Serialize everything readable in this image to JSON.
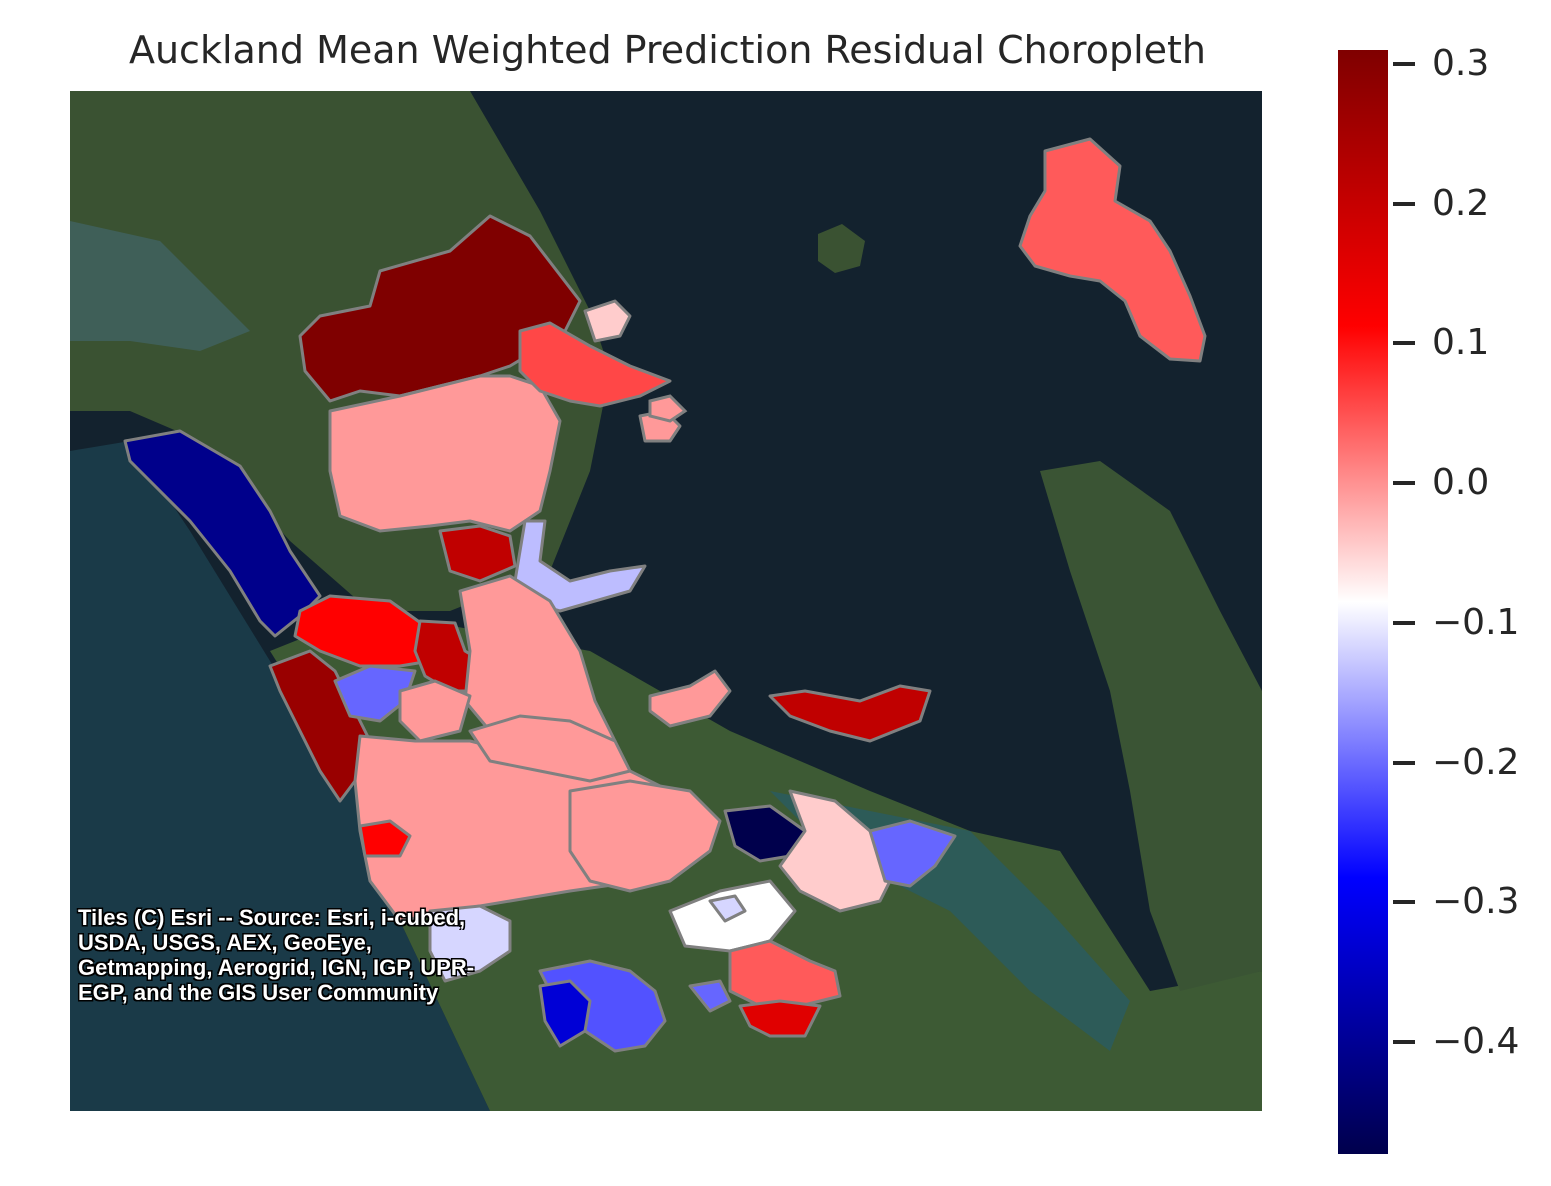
{
  "title": "Auckland Mean Weighted Prediction Residual Choropleth",
  "attribution": "Tiles (C) Esri -- Source: Esri, i-cubed, USDA, USGS, AEX, GeoEye, Getmapping, Aerogrid, IGN, IGP, UPR-EGP, and the GIS User Community",
  "colorbar": {
    "colormap": "seismic",
    "range": [
      -0.48,
      0.31
    ],
    "ticks": [
      {
        "value": 0.3,
        "label": "0.3"
      },
      {
        "value": 0.2,
        "label": "0.2"
      },
      {
        "value": 0.1,
        "label": "0.1"
      },
      {
        "value": 0.0,
        "label": "0.0"
      },
      {
        "value": -0.1,
        "label": "−0.1"
      },
      {
        "value": -0.2,
        "label": "−0.2"
      },
      {
        "value": -0.3,
        "label": "−0.3"
      },
      {
        "value": -0.4,
        "label": "−0.4"
      }
    ]
  },
  "colors": {
    "boundary": "#808080",
    "sea": "#13222e",
    "land": "#3c5230"
  }
}
